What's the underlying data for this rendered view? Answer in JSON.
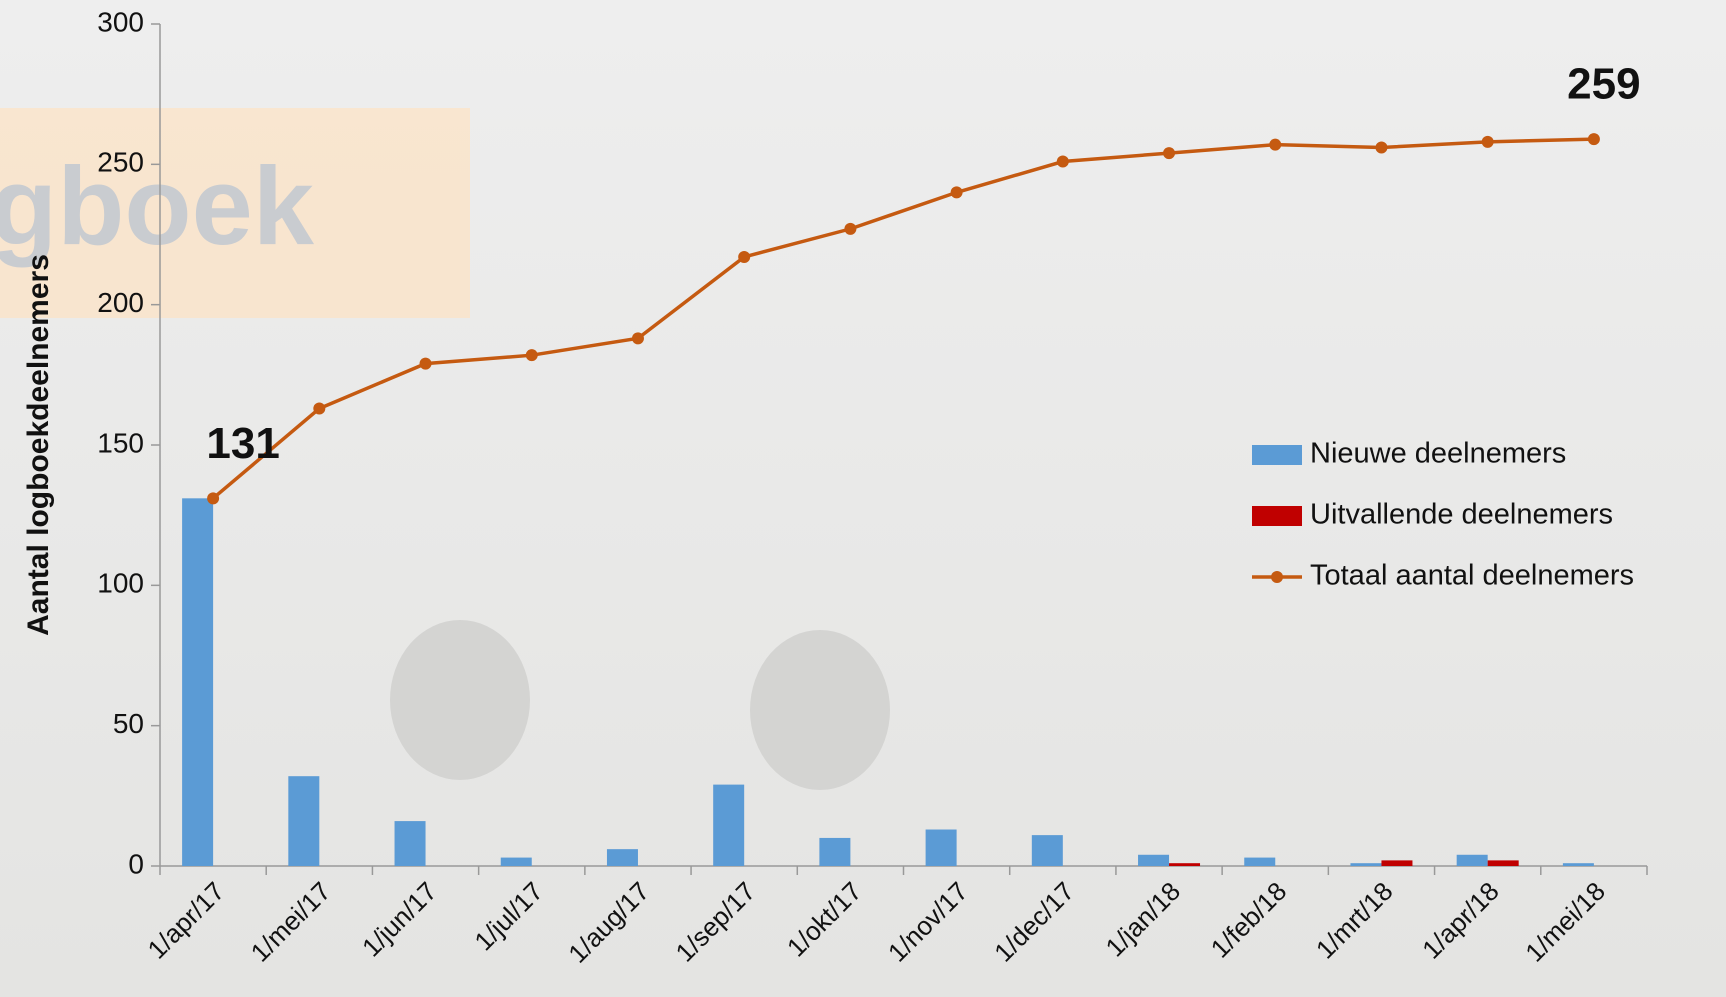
{
  "logo_text": "gboek",
  "chart_data": {
    "type": "bar-line",
    "y_label": "Aantal logboekdeelnemers",
    "categories": [
      "1/apr/17",
      "1/mei/17",
      "1/jun/17",
      "1/jul/17",
      "1/aug/17",
      "1/sep/17",
      "1/okt/17",
      "1/nov/17",
      "1/dec/17",
      "1/jan/18",
      "1/feb/18",
      "1/mrt/18",
      "1/apr/18",
      "1/mei/18"
    ],
    "series": [
      {
        "name": "Nieuwe deelnemers",
        "type": "bar",
        "color": "#5b9bd5",
        "values": [
          131,
          32,
          16,
          3,
          6,
          29,
          10,
          13,
          11,
          4,
          3,
          1,
          4,
          1
        ]
      },
      {
        "name": "Uitvallende deelnemers",
        "type": "bar",
        "color": "#c00000",
        "values": [
          0,
          0,
          0,
          0,
          0,
          0,
          0,
          0,
          0,
          1,
          0,
          2,
          2,
          0
        ]
      },
      {
        "name": "Totaal aantal deelnemers",
        "type": "line",
        "color": "#c55a11",
        "values": [
          131,
          163,
          179,
          182,
          188,
          217,
          227,
          240,
          251,
          254,
          257,
          256,
          258,
          259
        ],
        "value_labels": [
          "131",
          null,
          null,
          null,
          null,
          null,
          null,
          null,
          null,
          null,
          null,
          null,
          null,
          "259"
        ]
      }
    ],
    "ylim": [
      0,
      300
    ],
    "yticks": [
      0,
      50,
      100,
      150,
      200,
      250,
      300
    ],
    "grid": false,
    "legend": "right"
  }
}
